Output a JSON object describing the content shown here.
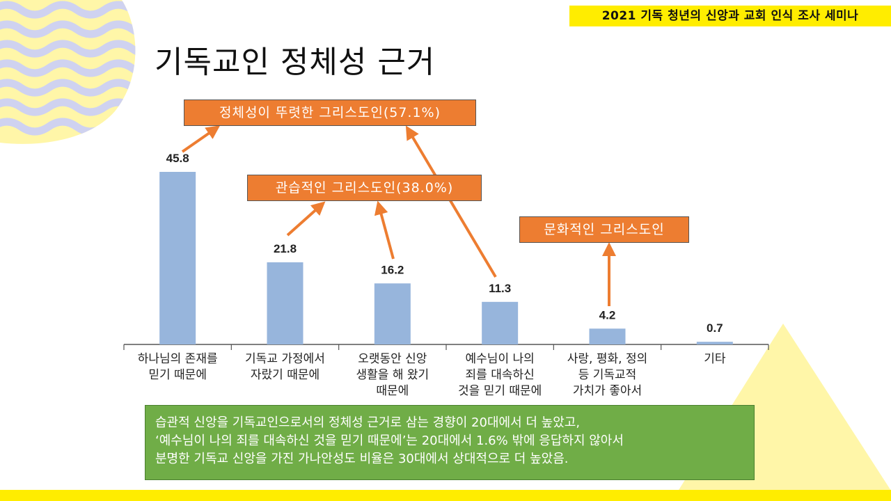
{
  "banner": "2021 기독 청년의 신앙과 교회 인식 조사 세미나",
  "title": "기독교인 정체성 근거",
  "callouts": {
    "clear": "정체성이 뚜렷한 그리스도인(57.1%)",
    "habitual": "관습적인 그리스도인(38.0%)",
    "cultural": "문화적인 그리스도인"
  },
  "chart_data": {
    "type": "bar",
    "title": "",
    "xlabel": "",
    "ylabel": "",
    "ylim": [
      0,
      50
    ],
    "grid": false,
    "categories": [
      [
        "하나님의 존재를",
        "믿기 때문에"
      ],
      [
        "기독교 가정에서",
        "자랐기 때문에"
      ],
      [
        "오랫동안 신앙",
        "생활을 해 왔기",
        "때문에"
      ],
      [
        "예수님이 나의",
        "죄를 대속하신",
        "것을 믿기 때문에"
      ],
      [
        "사랑, 평화, 정의",
        "등 기독교적",
        "가치가 좋아서"
      ],
      [
        "기타"
      ]
    ],
    "values": [
      45.8,
      21.8,
      16.2,
      11.3,
      4.2,
      0.7
    ],
    "value_labels": [
      "45.8",
      "21.8",
      "16.2",
      "11.3",
      "4.2",
      "0.7"
    ],
    "colors": {
      "bar": "#97b5dc",
      "axis": "#555555",
      "arrow": "#ed7d31"
    }
  },
  "summary": {
    "line1": "습관적 신앙을 기독교인으로서의 정체성 근거로 삼는 경향이 20대에서 더 높았고,",
    "line2": "‘예수님이 나의 죄를 대속하신 것을 믿기 때문에’는 20대에서 1.6% 밖에 응답하지 않아서",
    "line3": "분명한 기독교 신앙을 가진 가나안성도 비율은 30대에서 상대적으로 더 높았음."
  }
}
